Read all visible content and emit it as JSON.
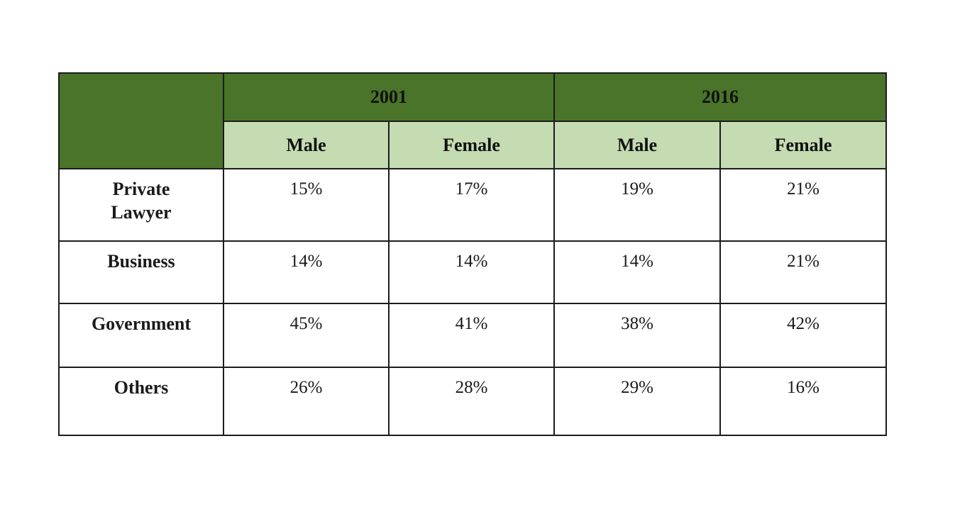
{
  "table": {
    "colors": {
      "header_dark_green": "#4a7429",
      "header_light_green": "#c5dbb2",
      "border": "#1c1c1c",
      "cell_background": "#ffffff"
    },
    "year_headers": {
      "y2001": "2001",
      "y2016": "2016"
    },
    "gender_headers": {
      "g0": "Male",
      "g1": "Female",
      "g2": "Male",
      "g3": "Female"
    },
    "rows": [
      {
        "label": "Private Lawyer",
        "values": [
          "15%",
          "17%",
          "19%",
          "21%"
        ]
      },
      {
        "label": "Business",
        "values": [
          "14%",
          "14%",
          "14%",
          "21%"
        ]
      },
      {
        "label": "Government",
        "values": [
          "45%",
          "41%",
          "38%",
          "42%"
        ]
      },
      {
        "label": "Others",
        "values": [
          "26%",
          "28%",
          "29%",
          "16%"
        ]
      }
    ]
  },
  "chart_data": {
    "type": "table",
    "title": "",
    "unit": "%",
    "row_categories": [
      "Private Lawyer",
      "Business",
      "Government",
      "Others"
    ],
    "column_groups": [
      "2001",
      "2016"
    ],
    "columns": [
      "2001 Male",
      "2001 Female",
      "2016 Male",
      "2016 Female"
    ],
    "series": [
      {
        "name": "2001 Male",
        "values": [
          15,
          14,
          45,
          26
        ]
      },
      {
        "name": "2001 Female",
        "values": [
          17,
          14,
          41,
          28
        ]
      },
      {
        "name": "2016 Male",
        "values": [
          19,
          14,
          38,
          29
        ]
      },
      {
        "name": "2016 Female",
        "values": [
          21,
          21,
          42,
          16
        ]
      }
    ]
  }
}
